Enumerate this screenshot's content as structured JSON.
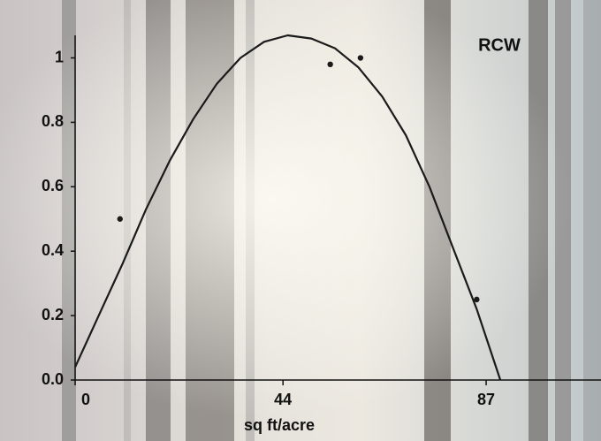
{
  "chart_data": {
    "type": "scatter",
    "title": "RCW",
    "xlabel": "sq ft/acre",
    "series": [
      {
        "x": [
          9.5,
          54,
          60.4,
          85
        ],
        "values": [
          0.5,
          0.98,
          1,
          0.25
        ],
        "color": "#1a1a1a"
      }
    ],
    "curve": {
      "x": [
        0,
        5,
        10,
        15,
        20,
        25,
        30,
        35,
        40,
        45,
        50,
        55,
        60,
        65,
        70,
        75,
        80,
        85,
        90
      ],
      "values": [
        0.04,
        0.2,
        0.36,
        0.53,
        0.68,
        0.81,
        0.92,
        1.0,
        1.05,
        1.07,
        1.06,
        1.03,
        0.97,
        0.88,
        0.76,
        0.6,
        0.41,
        0.22,
        0.0
      ],
      "color": "#1a1a1a"
    },
    "xlim": [
      0,
      110
    ],
    "xticks": [
      0,
      44,
      87
    ],
    "ylim": [
      0,
      1.07
    ],
    "yticks": [
      {
        "value": 0,
        "label": "0.0"
      },
      0.2,
      0.4,
      0.6,
      0.8,
      1
    ]
  }
}
